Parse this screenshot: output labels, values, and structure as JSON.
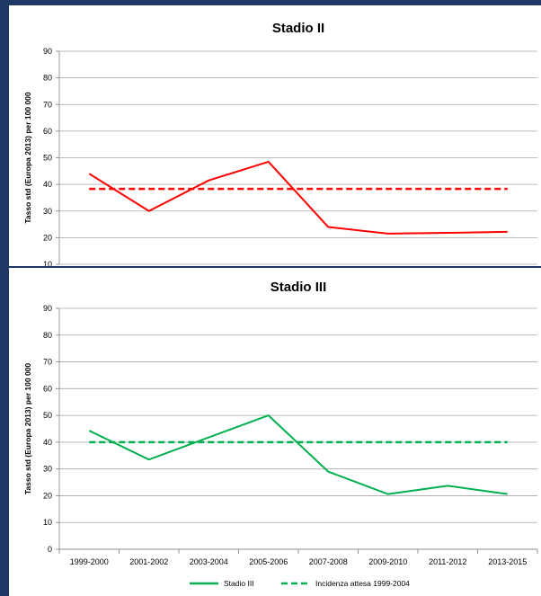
{
  "colors": {
    "background": "#1f3864",
    "panel": "#ffffff",
    "stadio2": "#ff0000",
    "stadio3": "#00b050",
    "grid": "#a6a6a6"
  },
  "chart_data": [
    {
      "type": "line",
      "title": "Stadio II",
      "ylabel": "Tasso std (Europa 2013) per 100 000",
      "xlabel": "",
      "categories": [
        "1999-2000",
        "2001-2002",
        "2003-2004",
        "2005-2006",
        "2007-2008",
        "2009-2010",
        "2011-2012",
        "2013-2015"
      ],
      "y_ticks": [
        "10",
        "20",
        "30",
        "40",
        "50",
        "60",
        "70",
        "80",
        "90"
      ],
      "ylim": [
        10,
        90
      ],
      "grid": true,
      "series": [
        {
          "values": [
            44,
            30,
            41.5,
            48.5,
            24,
            21.5,
            21.8,
            22.2
          ],
          "style": "solid",
          "color": "#ff0000"
        },
        {
          "values": [
            38.3,
            38.3,
            38.3,
            38.3,
            38.3,
            38.3,
            38.3,
            38.3
          ],
          "style": "dashed",
          "color": "#ff0000"
        }
      ]
    },
    {
      "type": "line",
      "title": "Stadio III",
      "ylabel": "Tasso std (Europa 2013) per 100 000",
      "xlabel": "",
      "categories": [
        "1999-2000",
        "2001-2002",
        "2003-2004",
        "2005-2006",
        "2007-2008",
        "2009-2010",
        "2011-2012",
        "2013-2015"
      ],
      "y_ticks": [
        "0",
        "10",
        "20",
        "30",
        "40",
        "50",
        "60",
        "70",
        "80",
        "90"
      ],
      "ylim": [
        0,
        90
      ],
      "grid": true,
      "legend_position": "bottom",
      "series": [
        {
          "name": "Stadio III",
          "values": [
            44.3,
            33.5,
            41.8,
            50,
            29,
            20.6,
            23.7,
            20.6
          ],
          "style": "solid",
          "color": "#00b050"
        },
        {
          "name": "Incidenza attesa 1999-2004",
          "values": [
            40,
            40,
            40,
            40,
            40,
            40,
            40,
            40
          ],
          "style": "dashed",
          "color": "#00b050"
        }
      ]
    }
  ]
}
